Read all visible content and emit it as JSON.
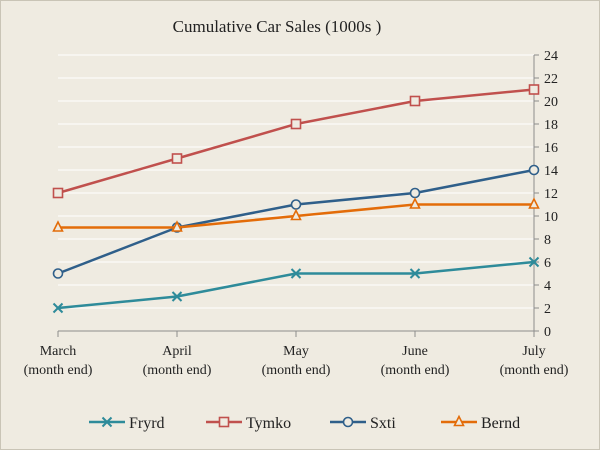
{
  "chart_data": {
    "type": "line",
    "title": "Cumulative Car Sales (1000s )",
    "categories": [
      "March (month end)",
      "April (month end)",
      "May (month end)",
      "June (month end)",
      "July (month end)"
    ],
    "category_lines": [
      [
        "March",
        "(month end)"
      ],
      [
        "April",
        "(month end)"
      ],
      [
        "May",
        "(month end)"
      ],
      [
        "June",
        "(month end)"
      ],
      [
        "July",
        "(month end)"
      ]
    ],
    "ylim": [
      0,
      24
    ],
    "yticks": [
      0,
      2,
      4,
      6,
      8,
      10,
      12,
      14,
      16,
      18,
      20,
      22,
      24
    ],
    "y_axis_side": "right",
    "grid": true,
    "legend_position": "bottom",
    "series": [
      {
        "name": "Fryrd",
        "values": [
          2,
          3,
          5,
          5,
          6
        ],
        "color": "#2e8b9a",
        "marker": "x"
      },
      {
        "name": "Tymko",
        "values": [
          12,
          15,
          18,
          20,
          21
        ],
        "color": "#c0504d",
        "marker": "square"
      },
      {
        "name": "Sxti",
        "values": [
          5,
          9,
          11,
          12,
          14
        ],
        "color": "#2f5f8a",
        "marker": "circle"
      },
      {
        "name": "Bernd",
        "values": [
          9,
          9,
          10,
          11,
          11
        ],
        "color": "#e36c09",
        "marker": "triangle"
      }
    ]
  }
}
